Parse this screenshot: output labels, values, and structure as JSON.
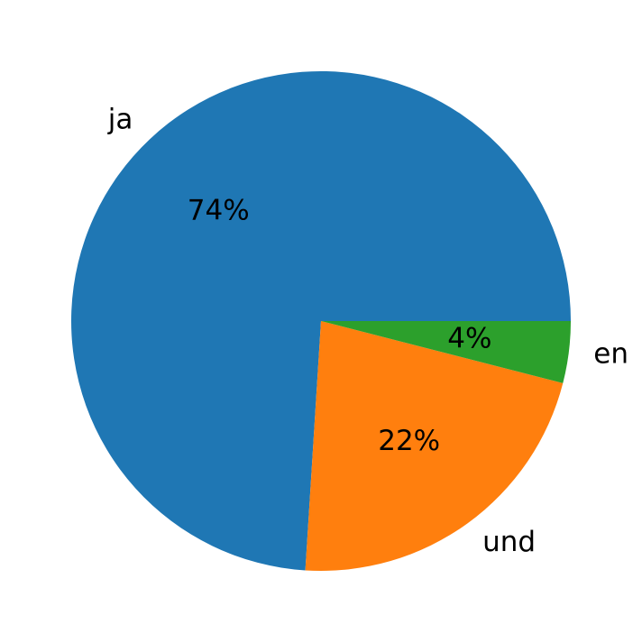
{
  "chart_data": {
    "type": "pie",
    "categories": [
      "ja",
      "und",
      "en"
    ],
    "values": [
      74,
      22,
      4
    ],
    "value_labels": [
      "74%",
      "22%",
      "4%"
    ],
    "colors": [
      "#1f77b4",
      "#ff7f0e",
      "#2ca02c"
    ]
  }
}
